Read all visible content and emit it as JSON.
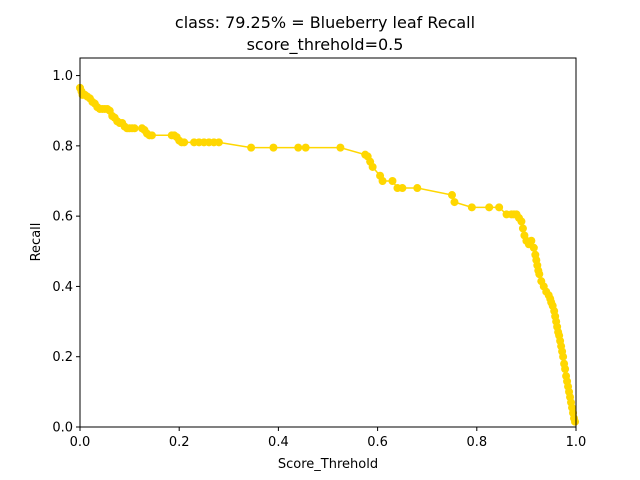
{
  "chart_data": {
    "type": "line",
    "title": "class: 79.25% = Blueberry leaf Recall",
    "subtitle": "score_threhold=0.5",
    "xlabel": "Score_Threhold",
    "ylabel": "Recall",
    "xlim": [
      0,
      1
    ],
    "ylim": [
      0,
      1.05
    ],
    "xticks": [
      0.0,
      0.2,
      0.4,
      0.6,
      0.8,
      1.0
    ],
    "yticks": [
      0.0,
      0.2,
      0.4,
      0.6,
      0.8,
      1.0
    ],
    "xtick_labels": [
      "0.0",
      "0.2",
      "0.4",
      "0.6",
      "0.8",
      "1.0"
    ],
    "ytick_labels": [
      "0.0",
      "0.2",
      "0.4",
      "0.6",
      "0.8",
      "1.0"
    ],
    "grid": false,
    "color": "#FFD700",
    "series": [
      {
        "marker": "circle",
        "x": [
          0.0,
          0.003,
          0.005,
          0.01,
          0.015,
          0.02,
          0.025,
          0.03,
          0.035,
          0.04,
          0.045,
          0.05,
          0.055,
          0.06,
          0.065,
          0.07,
          0.075,
          0.08,
          0.085,
          0.09,
          0.095,
          0.1,
          0.105,
          0.11,
          0.125,
          0.13,
          0.135,
          0.14,
          0.145,
          0.185,
          0.19,
          0.195,
          0.2,
          0.205,
          0.21,
          0.23,
          0.24,
          0.25,
          0.26,
          0.27,
          0.28,
          0.345,
          0.39,
          0.44,
          0.455,
          0.525,
          0.575,
          0.58,
          0.585,
          0.59,
          0.605,
          0.61,
          0.63,
          0.64,
          0.65,
          0.68,
          0.75,
          0.755,
          0.79,
          0.825,
          0.845,
          0.86,
          0.87,
          0.875,
          0.88,
          0.885,
          0.89,
          0.893,
          0.896,
          0.9,
          0.905,
          0.91,
          0.915,
          0.918,
          0.92,
          0.922,
          0.924,
          0.926,
          0.93,
          0.935,
          0.94,
          0.945,
          0.948,
          0.95,
          0.953,
          0.956,
          0.958,
          0.96,
          0.962,
          0.964,
          0.966,
          0.968,
          0.97,
          0.972,
          0.974,
          0.976,
          0.978,
          0.98,
          0.982,
          0.984,
          0.986,
          0.988,
          0.99,
          0.992,
          0.994,
          0.996,
          0.998
        ],
        "y": [
          0.965,
          0.955,
          0.945,
          0.945,
          0.94,
          0.935,
          0.925,
          0.92,
          0.91,
          0.905,
          0.905,
          0.905,
          0.905,
          0.9,
          0.885,
          0.88,
          0.87,
          0.865,
          0.865,
          0.855,
          0.85,
          0.85,
          0.85,
          0.85,
          0.85,
          0.845,
          0.835,
          0.83,
          0.83,
          0.83,
          0.83,
          0.825,
          0.815,
          0.81,
          0.81,
          0.81,
          0.81,
          0.81,
          0.81,
          0.81,
          0.81,
          0.795,
          0.795,
          0.795,
          0.795,
          0.795,
          0.775,
          0.77,
          0.755,
          0.74,
          0.715,
          0.7,
          0.7,
          0.68,
          0.68,
          0.68,
          0.66,
          0.64,
          0.625,
          0.625,
          0.625,
          0.605,
          0.605,
          0.605,
          0.605,
          0.595,
          0.585,
          0.565,
          0.545,
          0.53,
          0.52,
          0.53,
          0.51,
          0.49,
          0.475,
          0.46,
          0.445,
          0.435,
          0.415,
          0.4,
          0.385,
          0.375,
          0.365,
          0.355,
          0.345,
          0.33,
          0.315,
          0.3,
          0.285,
          0.27,
          0.26,
          0.245,
          0.23,
          0.215,
          0.2,
          0.18,
          0.165,
          0.145,
          0.13,
          0.115,
          0.1,
          0.085,
          0.07,
          0.055,
          0.04,
          0.025,
          0.015
        ]
      }
    ]
  }
}
